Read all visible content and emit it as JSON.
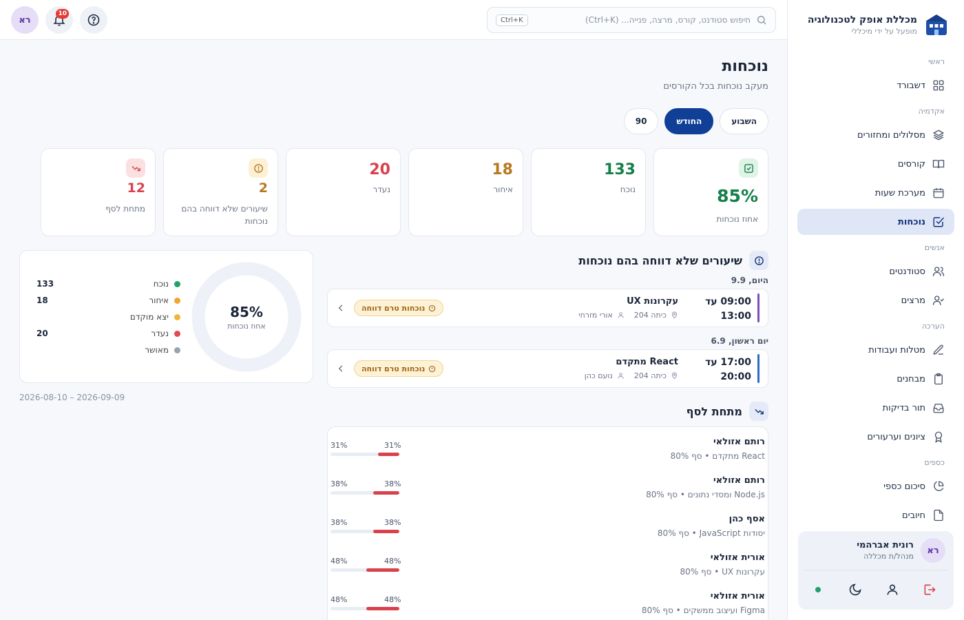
{
  "brand": {
    "name": "מכללת אופק לטכנולוגיה",
    "subtitle": "מופעל על ידי מיכללי"
  },
  "sidebar": {
    "sections": [
      {
        "label": "ראשי",
        "items": [
          {
            "label": "דשבורד",
            "icon": "grid-icon"
          }
        ]
      },
      {
        "label": "אקדמיה",
        "items": [
          {
            "label": "מסלולים ומחזורים",
            "icon": "layers-icon"
          },
          {
            "label": "קורסים",
            "icon": "book-icon"
          },
          {
            "label": "מערכת שעות",
            "icon": "calendar-icon"
          },
          {
            "label": "נוכחות",
            "icon": "check-square-icon",
            "active": true
          }
        ]
      },
      {
        "label": "אנשים",
        "items": [
          {
            "label": "סטודנטים",
            "icon": "users-icon"
          },
          {
            "label": "מרצים",
            "icon": "user-check-icon"
          }
        ]
      },
      {
        "label": "הערכה",
        "items": [
          {
            "label": "מטלות ועבודות",
            "icon": "pen-icon"
          },
          {
            "label": "מבחנים",
            "icon": "clipboard-icon"
          },
          {
            "label": "תור בדיקות",
            "icon": "inbox-icon"
          },
          {
            "label": "ציונים וערעורים",
            "icon": "award-icon"
          }
        ]
      },
      {
        "label": "כספים",
        "items": [
          {
            "label": "סיכום כספי",
            "icon": "pie-icon"
          },
          {
            "label": "חיובים",
            "icon": "file-icon"
          }
        ]
      }
    ]
  },
  "user": {
    "initials": "רא",
    "name": "רונית אברהמי",
    "role": "מנהל/ת מכללה"
  },
  "topbar": {
    "search_placeholder": "חיפוש סטודנט, קורס, מרצה, פנייה... (Ctrl+K)",
    "shortcut": "Ctrl+K",
    "notifications_count": "10",
    "avatar_initials": "רא"
  },
  "page": {
    "title": "נוכחות",
    "subtitle": "מעקב נוכחות בכל הקורסים"
  },
  "range_tabs": [
    {
      "label": "השבוע",
      "active": false
    },
    {
      "label": "החודש",
      "active": true
    },
    {
      "label": "90",
      "active": false
    }
  ],
  "stats": [
    {
      "value": "85%",
      "label": "אחוז נוכחות",
      "color": "#14804a"
    },
    {
      "value": "133",
      "label": "נוכח",
      "color": "#14804a"
    },
    {
      "value": "18",
      "label": "איחור",
      "color": "#b7791f"
    },
    {
      "value": "20",
      "label": "נעדר",
      "color": "#d9414c"
    },
    {
      "value": "2",
      "label": "שיעורים שלא דווחה בהם נוכחות",
      "color": "#b7791f"
    },
    {
      "value": "12",
      "label": "מתחת לסף",
      "color": "#d9414c"
    }
  ],
  "donut": {
    "value": "85%",
    "label": "אחוז נוכחות",
    "legend": [
      {
        "name": "נוכח",
        "value": "133",
        "color": "#22a06b",
        "count": 133
      },
      {
        "name": "איחור",
        "value": "18",
        "color": "#f0a530",
        "count": 18
      },
      {
        "name": "יצא מוקדם",
        "value": "",
        "color": "#f0b43a",
        "count": 0
      },
      {
        "name": "נעדר",
        "value": "20",
        "color": "#e5484d",
        "count": 20
      },
      {
        "name": "מאושר",
        "value": "",
        "color": "#98a2b3",
        "count": 0
      }
    ],
    "date_range": "2026-08-10 – 2026-09-09"
  },
  "unreported": {
    "title": "שיעורים שלא דווחה בהם נוכחות",
    "groups": [
      {
        "day": "היום, 9.9",
        "lesson": {
          "start": "09:00 עד",
          "end": "13:00",
          "course": "עקרונות UX",
          "room": "כיתה 204",
          "lecturer": "אורי מזרחי",
          "status": "נוכחות טרם דווחה",
          "color": "#7c4dbb"
        }
      },
      {
        "day": "יום ראשון, 6.9",
        "lesson": {
          "start": "17:00 עד",
          "end": "20:00",
          "course": "React מתקדם",
          "room": "כיתה 204",
          "lecturer": "נועם כהן",
          "status": "נוכחות טרם דווחה",
          "color": "#2d6cc5"
        }
      }
    ]
  },
  "below_threshold": {
    "title": "מתחת לסף",
    "rows": [
      {
        "name": "רותם אזולאי",
        "info": "React מתקדם • סף 80%",
        "pct_a": "31%",
        "pct_b": "31%",
        "value": 31
      },
      {
        "name": "רותם אזולאי",
        "info": "Node.js ומסדי נתונים • סף 80%",
        "pct_a": "38%",
        "pct_b": "38%",
        "value": 38
      },
      {
        "name": "אסף כהן",
        "info": "יסודות JavaScript • סף 80%",
        "pct_a": "38%",
        "pct_b": "38%",
        "value": 38
      },
      {
        "name": "אורית אזולאי",
        "info": "עקרונות UX • סף 80%",
        "pct_a": "48%",
        "pct_b": "48%",
        "value": 48
      },
      {
        "name": "אורית אזולאי",
        "info": "Figma ועיצוב ממשקים • סף 80%",
        "pct_a": "48%",
        "pct_b": "48%",
        "value": 48
      }
    ]
  }
}
